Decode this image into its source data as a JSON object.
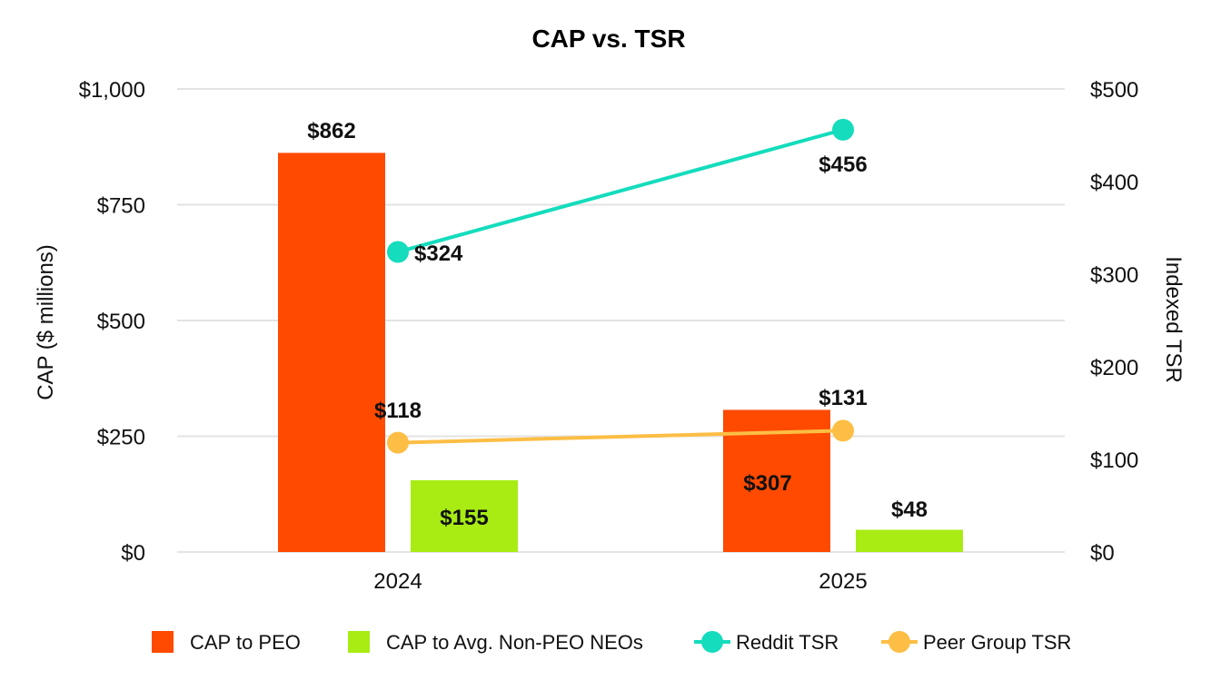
{
  "chart_data": {
    "type": "bar",
    "title": "CAP vs. TSR",
    "categories": [
      "2024",
      "2025"
    ],
    "y_left": {
      "label": "CAP ($ millions)",
      "range": [
        0,
        1000
      ],
      "ticks": [
        0,
        250,
        500,
        750,
        1000
      ],
      "tick_labels": [
        "$0",
        "$250",
        "$500",
        "$750",
        "$1,000"
      ]
    },
    "y_right": {
      "label": "Indexed TSR",
      "range": [
        0,
        500
      ],
      "ticks": [
        0,
        100,
        200,
        300,
        400,
        500
      ],
      "tick_labels": [
        "$0",
        "$100",
        "$200",
        "$300",
        "$400",
        "$500"
      ]
    },
    "grid": true,
    "legend_position": "bottom",
    "series": [
      {
        "name": "CAP to PEO",
        "kind": "bar",
        "axis": "left",
        "color": "#ff4a00",
        "values": [
          862,
          307
        ],
        "labels": [
          "$862",
          "$307"
        ]
      },
      {
        "name": "CAP to Avg. Non-PEO NEOs",
        "kind": "bar",
        "axis": "left",
        "color": "#a8ec14",
        "values": [
          155,
          48
        ],
        "labels": [
          "$155",
          "$48"
        ]
      },
      {
        "name": "Reddit TSR",
        "kind": "line",
        "axis": "right",
        "color": "#14dcbc",
        "values": [
          324,
          456
        ],
        "labels": [
          "$324",
          "$456"
        ]
      },
      {
        "name": "Peer Group TSR",
        "kind": "line",
        "axis": "right",
        "color": "#fcbe44",
        "values": [
          118,
          131
        ],
        "labels": [
          "$118",
          "$131"
        ]
      }
    ]
  }
}
